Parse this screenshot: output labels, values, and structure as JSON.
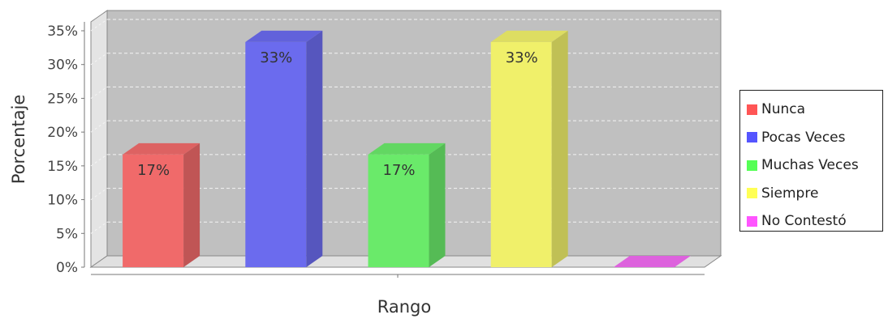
{
  "chart_data": {
    "type": "bar",
    "categories": [
      "Nunca",
      "Pocas Veces",
      "Muchas Veces",
      "Siempre",
      "No Contestó"
    ],
    "values": [
      16.67,
      33.33,
      16.67,
      33.33,
      0
    ],
    "data_labels": [
      "17%",
      "33%",
      "17%",
      "33%",
      ""
    ],
    "colors": [
      "#f06a6a",
      "#6b6bee",
      "#6aea6a",
      "#f0f06a",
      "#f06af0"
    ],
    "xlabel": "Rango",
    "ylabel": "Porcentaje",
    "ylim": [
      0,
      35
    ],
    "yticks": [
      0,
      5,
      10,
      15,
      20,
      25,
      30,
      35
    ],
    "ytick_labels": [
      "0%",
      "5%",
      "10%",
      "15%",
      "20%",
      "25%",
      "30%",
      "35%"
    ],
    "grid": true,
    "legend_position": "right",
    "style": "3d"
  }
}
